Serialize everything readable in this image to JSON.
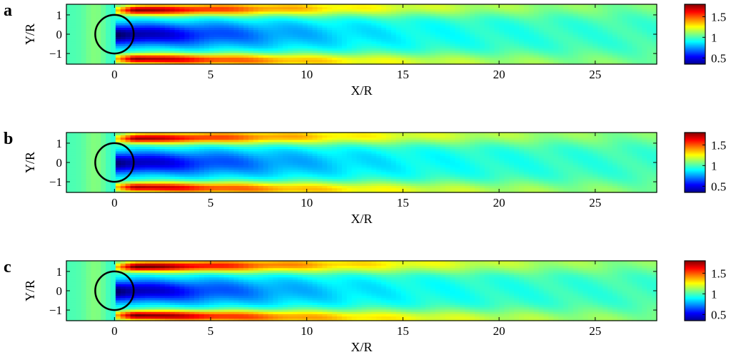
{
  "chart_data": [
    {
      "panel_label": "a",
      "type": "heatmap",
      "xlabel": "X/R",
      "ylabel": "Y/R",
      "xlim": [
        -2.5,
        28.2
      ],
      "ylim": [
        -1.55,
        1.55
      ],
      "xticks": [
        0,
        5,
        10,
        15,
        20,
        25
      ],
      "yticks": [
        1,
        0,
        -1
      ],
      "colorbar": {
        "ticks": [
          1.5,
          1,
          0.5
        ],
        "range": [
          0.35,
          1.8
        ],
        "colormap": "jet"
      },
      "circle": {
        "cx": 0,
        "cy": 0,
        "r": 1
      },
      "field": {
        "deficit": 0.72,
        "edge_peak": 0.9,
        "edge_decay": 11,
        "center_decay": 8
      }
    },
    {
      "panel_label": "b",
      "type": "heatmap",
      "xlabel": "X/R",
      "ylabel": "Y/R",
      "xlim": [
        -2.5,
        28.2
      ],
      "ylim": [
        -1.55,
        1.55
      ],
      "xticks": [
        0,
        5,
        10,
        15,
        20,
        25
      ],
      "yticks": [
        1,
        0,
        -1
      ],
      "colorbar": {
        "ticks": [
          1.5,
          1,
          0.5
        ],
        "range": [
          0.35,
          1.8
        ],
        "colormap": "jet"
      },
      "circle": {
        "cx": 0,
        "cy": 0,
        "r": 1
      },
      "field": {
        "deficit": 0.68,
        "edge_peak": 0.85,
        "edge_decay": 12,
        "center_decay": 8.5
      }
    },
    {
      "panel_label": "c",
      "type": "heatmap",
      "xlabel": "X/R",
      "ylabel": "Y/R",
      "xlim": [
        -2.5,
        28.2
      ],
      "ylim": [
        -1.55,
        1.55
      ],
      "xticks": [
        0,
        5,
        10,
        15,
        20,
        25
      ],
      "yticks": [
        1,
        0,
        -1
      ],
      "colorbar": {
        "ticks": [
          1.5,
          1,
          0.5
        ],
        "range": [
          0.35,
          1.8
        ],
        "colormap": "jet"
      },
      "circle": {
        "cx": 0,
        "cy": 0,
        "r": 1
      },
      "field": {
        "deficit": 0.7,
        "edge_peak": 0.95,
        "edge_decay": 12,
        "center_decay": 8
      }
    }
  ]
}
